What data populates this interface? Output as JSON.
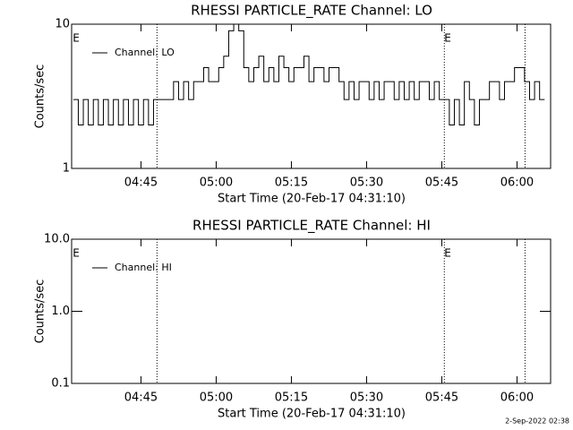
{
  "chart_data": [
    {
      "type": "line",
      "title": "RHESSI PARTICLE_RATE Channel: LO",
      "xlabel": "Start Time (20-Feb-17 04:31:10)",
      "ylabel": "Counts/sec",
      "log_y": true,
      "xlim": [
        271.17,
        366.7
      ],
      "xticks": [
        {
          "value": 285,
          "label": "04:45"
        },
        {
          "value": 300,
          "label": "05:00"
        },
        {
          "value": 315,
          "label": "05:15"
        },
        {
          "value": 330,
          "label": "05:30"
        },
        {
          "value": 345,
          "label": "05:45"
        },
        {
          "value": 360,
          "label": "06:00"
        }
      ],
      "ylim": [
        1,
        10
      ],
      "yticks": [
        1,
        10
      ],
      "vlines": [
        288.2,
        345.5,
        361.6
      ],
      "flags": [
        {
          "x": 271.4,
          "label": "E"
        },
        {
          "x": 345.5,
          "label": "E"
        }
      ],
      "series": [
        {
          "name": "Channel: LO",
          "color": "#000000",
          "x": [
            272,
            273,
            274,
            275,
            276,
            277,
            278,
            279,
            280,
            281,
            282,
            283,
            284,
            285,
            286,
            287,
            288,
            289,
            290,
            291,
            292,
            293,
            294,
            295,
            296,
            297,
            298,
            299,
            300,
            301,
            302,
            303,
            304,
            305,
            306,
            307,
            308,
            309,
            310,
            311,
            312,
            313,
            314,
            315,
            316,
            317,
            318,
            319,
            320,
            321,
            322,
            323,
            324,
            325,
            326,
            327,
            328,
            329,
            330,
            331,
            332,
            333,
            334,
            335,
            336,
            337,
            338,
            339,
            340,
            341,
            342,
            343,
            344,
            345,
            346,
            347,
            348,
            349,
            350,
            351,
            352,
            353,
            354,
            355,
            356,
            357,
            358,
            359,
            360,
            361,
            362,
            363,
            364,
            365
          ],
          "values": [
            3,
            2,
            3,
            2,
            3,
            2,
            3,
            2,
            3,
            2,
            3,
            2,
            3,
            2,
            3,
            2,
            3,
            3,
            3,
            3,
            4,
            3,
            4,
            3,
            4,
            4,
            5,
            4,
            4,
            5,
            6,
            9,
            10,
            9,
            5,
            4,
            5,
            6,
            4,
            5,
            4,
            6,
            5,
            4,
            5,
            5,
            6,
            4,
            5,
            5,
            4,
            5,
            5,
            4,
            3,
            4,
            3,
            4,
            4,
            3,
            4,
            3,
            4,
            4,
            3,
            4,
            3,
            4,
            3,
            4,
            4,
            3,
            4,
            3,
            3,
            2,
            3,
            2,
            4,
            3,
            2,
            3,
            3,
            4,
            4,
            3,
            4,
            4,
            5,
            5,
            4,
            3,
            4,
            3
          ]
        }
      ]
    },
    {
      "type": "line",
      "title": "RHESSI PARTICLE_RATE Channel: HI",
      "xlabel": "Start Time (20-Feb-17 04:31:10)",
      "ylabel": "Counts/sec",
      "log_y": true,
      "xlim": [
        271.17,
        366.7
      ],
      "xticks": [
        {
          "value": 285,
          "label": "04:45"
        },
        {
          "value": 300,
          "label": "05:00"
        },
        {
          "value": 315,
          "label": "05:15"
        },
        {
          "value": 330,
          "label": "05:30"
        },
        {
          "value": 345,
          "label": "05:45"
        },
        {
          "value": 360,
          "label": "06:00"
        }
      ],
      "ylim": [
        0.1,
        10
      ],
      "yticks": [
        0.1,
        {
          "value": 1,
          "label": "1.0"
        },
        {
          "value": 10,
          "label": "10.0"
        }
      ],
      "vlines": [
        288.2,
        345.5,
        361.6
      ],
      "flags": [
        {
          "x": 271.4,
          "label": "E"
        },
        {
          "x": 345.5,
          "label": "E"
        }
      ],
      "series": [
        {
          "name": "Channel: HI",
          "color": "#000000",
          "x": [],
          "values": []
        }
      ]
    }
  ],
  "footer": "2-Sep-2022 02:38"
}
